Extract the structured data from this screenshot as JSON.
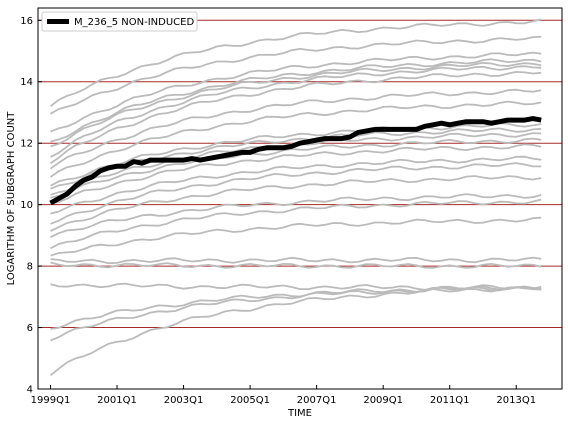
{
  "chart_data": {
    "type": "line",
    "title": "",
    "xlabel": "TIME",
    "ylabel": "LOGARITHM OF SUBGRAPH COUNT",
    "xlim": [
      0,
      60
    ],
    "ylim": [
      4,
      16.4
    ],
    "x_ticks": [
      {
        "x": 0,
        "label": "1999Q1"
      },
      {
        "x": 8,
        "label": "2001Q1"
      },
      {
        "x": 16,
        "label": "2003Q1"
      },
      {
        "x": 24,
        "label": "2005Q1"
      },
      {
        "x": 32,
        "label": "2007Q1"
      },
      {
        "x": 40,
        "label": "2009Q1"
      },
      {
        "x": 48,
        "label": "2011Q1"
      },
      {
        "x": 56,
        "label": "2013Q1"
      }
    ],
    "y_ticks": [
      4,
      6,
      8,
      10,
      12,
      14,
      16
    ],
    "grid": "horizontal",
    "grid_color": "#a52a2a",
    "background_series_color": "#bbbbbb",
    "highlight_color": "#000000",
    "legend": {
      "position": "top-left",
      "entries": [
        "M_236_5 NON-INDUCED"
      ]
    },
    "x": [
      0,
      1,
      2,
      3,
      4,
      5,
      6,
      7,
      8,
      9,
      10,
      11,
      12,
      13,
      14,
      15,
      16,
      17,
      18,
      19,
      20,
      21,
      22,
      23,
      24,
      25,
      26,
      27,
      28,
      29,
      30,
      31,
      32,
      33,
      34,
      35,
      36,
      37,
      38,
      39,
      40,
      41,
      42,
      43,
      44,
      45,
      46,
      47,
      48,
      49,
      50,
      51,
      52,
      53,
      54,
      55,
      56,
      57,
      58,
      59
    ],
    "background_series": [
      {
        "start": 13.2,
        "end": 15.95
      },
      {
        "start": 12.9,
        "end": 15.4
      },
      {
        "start": 12.3,
        "end": 14.9
      },
      {
        "start": 12.0,
        "end": 14.7
      },
      {
        "start": 11.9,
        "end": 14.6
      },
      {
        "start": 11.6,
        "end": 14.5
      },
      {
        "start": 11.4,
        "end": 14.3
      },
      {
        "start": 11.2,
        "end": 13.7
      },
      {
        "start": 10.9,
        "end": 13.3
      },
      {
        "start": 10.6,
        "end": 12.6
      },
      {
        "start": 10.5,
        "end": 12.45
      },
      {
        "start": 10.3,
        "end": 12.3
      },
      {
        "start": 10.2,
        "end": 12.1
      },
      {
        "start": 10.0,
        "end": 11.9
      },
      {
        "start": 9.7,
        "end": 11.5
      },
      {
        "start": 9.4,
        "end": 11.3
      },
      {
        "start": 9.2,
        "end": 10.9
      },
      {
        "start": 9.0,
        "end": 10.3
      },
      {
        "start": 8.6,
        "end": 10.1
      },
      {
        "start": 8.3,
        "end": 9.5
      },
      {
        "start": 8.15,
        "end": 8.2
      },
      {
        "start": 8.05,
        "end": 8.0
      },
      {
        "start": 7.4,
        "end": 7.3
      },
      {
        "start": 6.0,
        "end": 7.3
      },
      {
        "start": 5.65,
        "end": 7.3
      },
      {
        "start": 4.5,
        "end": 7.3
      }
    ],
    "series": [
      {
        "name": "M_236_5 NON-INDUCED",
        "values": [
          10.05,
          10.2,
          10.35,
          10.6,
          10.8,
          10.9,
          11.1,
          11.2,
          11.25,
          11.25,
          11.4,
          11.35,
          11.45,
          11.45,
          11.45,
          11.45,
          11.45,
          11.5,
          11.45,
          11.5,
          11.55,
          11.6,
          11.65,
          11.7,
          11.7,
          11.8,
          11.85,
          11.85,
          11.85,
          11.9,
          12.0,
          12.05,
          12.1,
          12.15,
          12.15,
          12.15,
          12.2,
          12.35,
          12.4,
          12.45,
          12.45,
          12.45,
          12.45,
          12.45,
          12.45,
          12.55,
          12.6,
          12.65,
          12.6,
          12.65,
          12.7,
          12.7,
          12.7,
          12.65,
          12.7,
          12.75,
          12.75,
          12.75,
          12.8,
          12.75
        ]
      }
    ]
  }
}
